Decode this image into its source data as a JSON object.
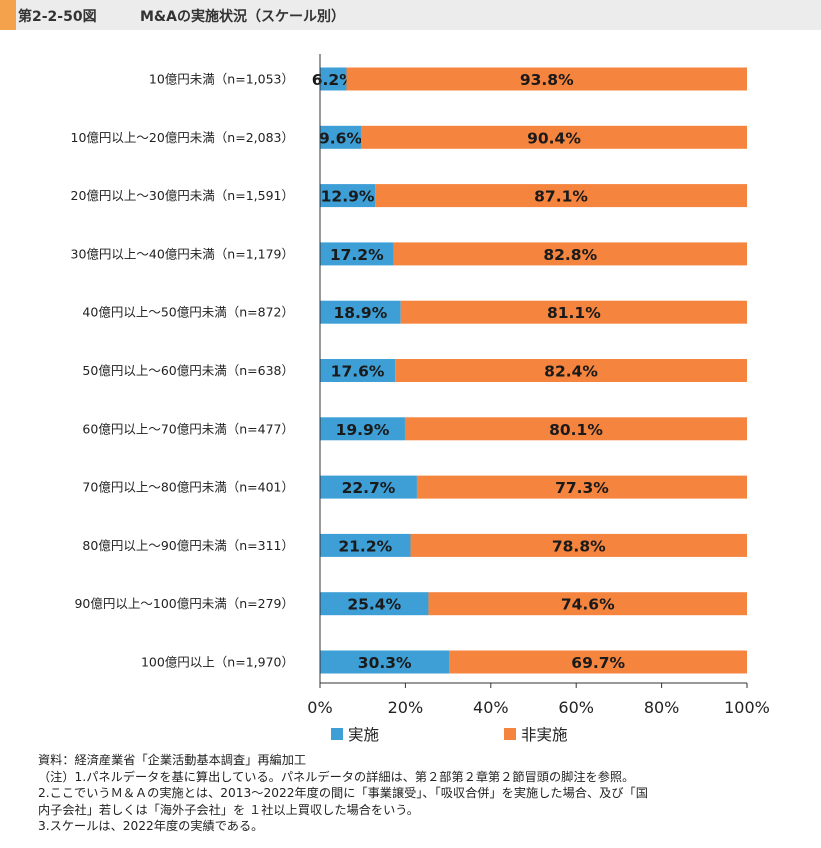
{
  "header": {
    "figure_number": "第2-2-50図",
    "title": "M&Aの実施状況（スケール別）"
  },
  "colors": {
    "implemented": "#3d9fd6",
    "not_implemented": "#f4843e",
    "header_accent": "#f4a24c"
  },
  "chart_data": {
    "type": "bar",
    "orientation": "horizontal",
    "stacked": true,
    "percent": true,
    "categories": [
      "10億円未満（n=1,053）",
      "10億円以上～20億円未満（n=2,083）",
      "20億円以上～30億円未満（n=1,591）",
      "30億円以上～40億円未満（n=1,179）",
      "40億円以上～50億円未満（n=872）",
      "50億円以上～60億円未満（n=638）",
      "60億円以上～70億円未満（n=477）",
      "70億円以上～80億円未満（n=401）",
      "80億円以上～90億円未満（n=311）",
      "90億円以上～100億円未満（n=279）",
      "100億円以上（n=1,970）"
    ],
    "series": [
      {
        "name": "実施",
        "values": [
          6.2,
          9.6,
          12.9,
          17.2,
          18.9,
          17.6,
          19.9,
          22.7,
          21.2,
          25.4,
          30.3
        ],
        "labels": [
          "6.2%",
          "9.6%",
          "12.9%",
          "17.2%",
          "18.9%",
          "17.6%",
          "19.9%",
          "22.7%",
          "21.2%",
          "25.4%",
          "30.3%"
        ]
      },
      {
        "name": "非実施",
        "values": [
          93.8,
          90.4,
          87.1,
          82.8,
          81.1,
          82.4,
          80.1,
          77.3,
          78.8,
          74.6,
          69.7
        ],
        "labels": [
          "93.8%",
          "90.4%",
          "87.1%",
          "82.8%",
          "81.1%",
          "82.4%",
          "80.1%",
          "77.3%",
          "78.8%",
          "74.6%",
          "69.7%"
        ]
      }
    ],
    "xlim": [
      0,
      100
    ],
    "x_ticks": [
      "0%",
      "20%",
      "40%",
      "60%",
      "80%",
      "100%"
    ],
    "legend_position": "bottom",
    "grid": false
  },
  "notes": [
    "資料：経済産業省「企業活動基本調査」再編加工",
    "（注）1.パネルデータを基に算出している。パネルデータの詳細は、第２部第２章第２節冒頭の脚注を参照。",
    "2.ここでいうＭ＆Ａの実施とは、2013～2022年度の間に「事業譲受」、「吸収合併」を実施した場合、及び「国",
    "内子会社」若しくは「海外子会社」を １社以上買収した場合をいう。",
    "3.スケールは、2022年度の実績である。"
  ]
}
